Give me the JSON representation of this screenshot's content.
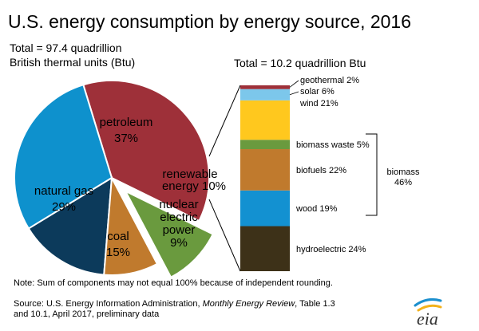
{
  "colors": {
    "petroleum": "#9e3039",
    "natural_gas": "#0e91cd",
    "coal": "#0c3a5b",
    "nuclear": "#c07a2d",
    "renewable": "#6a9a3e",
    "geothermal": "#9e3039",
    "solar": "#7cc7eb",
    "wind": "#ffc81e",
    "biomass_waste": "#6a9a3e",
    "biofuels": "#c07a2d",
    "wood": "#1391d1",
    "hydroelectric": "#3d3118"
  },
  "chart_data": {
    "type": "pie",
    "title": "U.S. energy consumption by energy source, 2016",
    "total_line1": "Total = 97.4 quadrillion",
    "total_line2": "British thermal units (Btu)",
    "slices": [
      {
        "key": "petroleum",
        "label": "petroleum",
        "percent_label": "37%",
        "value": 37
      },
      {
        "key": "renewable",
        "label": "renewable",
        "label2": "energy 10%",
        "value": 10
      },
      {
        "key": "nuclear",
        "label": "nuclear",
        "label2": "electric",
        "label3": "power",
        "percent_label": "9%",
        "value": 9
      },
      {
        "key": "coal",
        "label": "coal",
        "percent_label": "15%",
        "value": 15
      },
      {
        "key": "natural_gas",
        "label": "natural gas",
        "percent_label": "29%",
        "value": 29
      }
    ],
    "renewable_breakdown": {
      "type": "stacked-bar",
      "title": "Total = 10.2 quadrillion Btu",
      "segments": [
        {
          "key": "hydroelectric",
          "label": "hydroelectric 24%",
          "value": 24
        },
        {
          "key": "wood",
          "label": "wood 19%",
          "value": 19
        },
        {
          "key": "biofuels",
          "label": "biofuels 22%",
          "value": 22
        },
        {
          "key": "biomass_waste",
          "label": "biomass waste 5%",
          "value": 5
        },
        {
          "key": "wind",
          "label": "wind 21%",
          "value": 21
        },
        {
          "key": "solar",
          "label": "solar 6%",
          "value": 6
        },
        {
          "key": "geothermal",
          "label": "geothermal 2%",
          "value": 2
        }
      ],
      "biomass_label": "biomass",
      "biomass_percent": "46%"
    }
  },
  "footer": {
    "note": "Note: Sum of components may not equal 100% because of independent rounding.",
    "source_prefix": "Source: U.S. Energy Information Administration, ",
    "source_italic": "Monthly Energy Review",
    "source_suffix": ", Table 1.3",
    "source_line2": "and 10.1, April 2017, preliminary data",
    "logo_text": "eia"
  }
}
